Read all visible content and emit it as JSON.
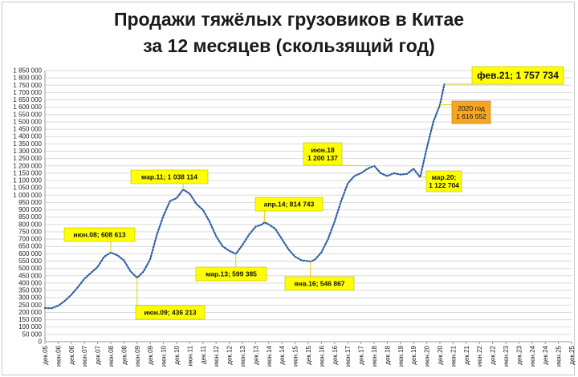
{
  "chart_data": {
    "type": "line",
    "title": [
      "Продажи тяжёлых грузовиков в Китае",
      "за 12 месяцев (скользящий год)"
    ],
    "xlabel": "",
    "ylabel": "",
    "ylim": [
      0,
      1850000
    ],
    "y_step": 50000,
    "y_ticks": [
      "0",
      "50 000",
      "100 000",
      "150 000",
      "200 000",
      "250 000",
      "300 000",
      "350 000",
      "400 000",
      "450 000",
      "500 000",
      "550 000",
      "600 000",
      "650 000",
      "700 000",
      "750 000",
      "800 000",
      "850 000",
      "900 000",
      "950 000",
      "1 000 000",
      "1 050 000",
      "1 100 000",
      "1 150 000",
      "1 200 000",
      "1 250 000",
      "1 300 000",
      "1 350 000",
      "1 400 000",
      "1 450 000",
      "1 500 000",
      "1 550 000",
      "1 600 000",
      "1 650 000",
      "1 700 000",
      "1 750 000",
      "1 800 000",
      "1 850 000"
    ],
    "x_ticks": [
      "дек.05",
      "июн.06",
      "дек.06",
      "июн.07",
      "дек.07",
      "июн.08",
      "дек.08",
      "июн.09",
      "дек.09",
      "июн.10",
      "дек.10",
      "июн.11",
      "дек.11",
      "июн.12",
      "дек.12",
      "июн.13",
      "дек.13",
      "июн.14",
      "дек.14",
      "июн.15",
      "дек.15",
      "июн.16",
      "дек.16",
      "июн.17",
      "дек.17",
      "июн.18",
      "дек.18",
      "июн.19",
      "дек.19",
      "июн.20",
      "дек.20",
      "июн.21",
      "дек.21",
      "июн.22",
      "дек.22",
      "июн.23",
      "дек.23",
      "июн.24",
      "дек.24",
      "июн.25",
      "дек.25"
    ],
    "grid": true,
    "series": [
      {
        "color": "#2e5fa3",
        "x": [
          "дек.05",
          "мар.06",
          "июн.06",
          "сен.06",
          "дек.06",
          "мар.07",
          "июн.07",
          "сен.07",
          "дек.07",
          "мар.08",
          "июн.08",
          "сен.08",
          "дек.08",
          "мар.09",
          "июн.09",
          "сен.09",
          "дек.09",
          "мар.10",
          "июн.10",
          "сен.10",
          "дек.10",
          "мар.11",
          "июн.11",
          "сен.11",
          "дек.11",
          "мар.12",
          "июн.12",
          "сен.12",
          "дек.12",
          "мар.13",
          "июн.13",
          "сен.13",
          "дек.13",
          "мар.14",
          "апр.14",
          "июн.14",
          "сен.14",
          "дек.14",
          "мар.15",
          "июн.15",
          "сен.15",
          "дек.15",
          "янв.16",
          "мар.16",
          "июн.16",
          "сен.16",
          "дек.16",
          "мар.17",
          "июн.17",
          "сен.17",
          "дек.17",
          "мар.18",
          "июн.18",
          "сен.18",
          "дек.18",
          "мар.19",
          "июн.19",
          "сен.19",
          "дек.19",
          "мар.20",
          "июн.20",
          "сен.20",
          "дек.20",
          "фев.21"
        ],
        "y": [
          230000,
          228000,
          245000,
          278000,
          320000,
          372000,
          430000,
          470000,
          510000,
          580000,
          608613,
          590000,
          555000,
          480000,
          436213,
          480000,
          565000,
          730000,
          860000,
          960000,
          980000,
          1038114,
          1010000,
          940000,
          900000,
          820000,
          720000,
          650000,
          620000,
          599385,
          660000,
          730000,
          785000,
          800000,
          814743,
          800000,
          770000,
          700000,
          630000,
          580000,
          555000,
          550000,
          546867,
          560000,
          610000,
          700000,
          820000,
          960000,
          1080000,
          1130000,
          1150000,
          1180000,
          1200137,
          1150000,
          1130000,
          1150000,
          1140000,
          1145000,
          1180000,
          1122704,
          1320000,
          1500000,
          1616552,
          1757734
        ]
      }
    ],
    "annotations": [
      {
        "text": "июн.08; 608 613",
        "x": "июн.08",
        "y": 608613
      },
      {
        "text": "июн.09; 436 213",
        "x": "июн.09",
        "y": 436213
      },
      {
        "text": "мар.11; 1 038 114",
        "x": "мар.11",
        "y": 1038114
      },
      {
        "text": "мар.13; 599 385",
        "x": "мар.13",
        "y": 599385
      },
      {
        "text": "апр.14; 814 743",
        "x": "апр.14",
        "y": 814743
      },
      {
        "text": "янв.16; 546 867",
        "x": "янв.16",
        "y": 546867
      },
      {
        "text": [
          "июн.18",
          "1 200 137"
        ],
        "x": "июн.18",
        "y": 1200137
      },
      {
        "text": [
          "мар.20;",
          "1 122 704"
        ],
        "x": "мар.20",
        "y": 1122704
      },
      {
        "text": [
          "2020 год",
          "1 616 552"
        ],
        "x": "дек.20",
        "y": 1616552,
        "style": "orange"
      },
      {
        "text": "фев.21; 1 757 734",
        "x": "фев.21",
        "y": 1757734,
        "style": "large"
      }
    ]
  }
}
